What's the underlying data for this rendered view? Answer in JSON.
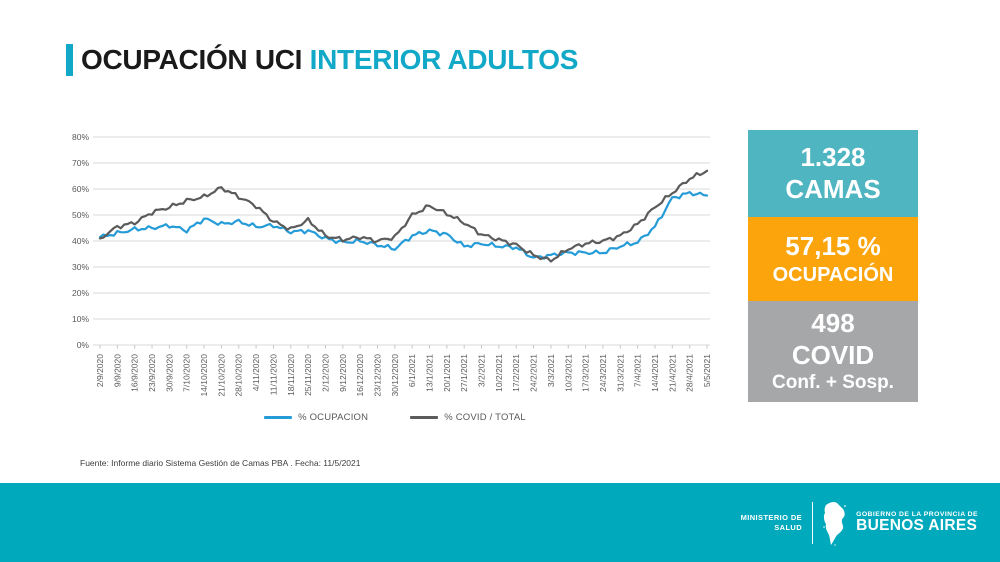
{
  "title": {
    "black": "OCUPACIÓN UCI ",
    "highlight": "INTERIOR ADULTOS",
    "accent_color": "#12a9c8"
  },
  "chart_data": {
    "type": "line",
    "x_labels": [
      "2/9/2020",
      "9/9/2020",
      "16/9/2020",
      "23/9/2020",
      "30/9/2020",
      "7/10/2020",
      "14/10/2020",
      "21/10/2020",
      "28/10/2020",
      "4/11/2020",
      "11/11/2020",
      "18/11/2020",
      "25/11/2020",
      "2/12/2020",
      "9/12/2020",
      "16/12/2020",
      "23/12/2020",
      "30/12/2020",
      "6/1/2021",
      "13/1/2021",
      "20/1/2021",
      "27/1/2021",
      "3/2/2021",
      "10/2/2021",
      "17/2/2021",
      "24/2/2021",
      "3/3/2021",
      "10/3/2021",
      "17/3/2021",
      "24/3/2021",
      "31/3/2021",
      "7/4/2021",
      "14/4/2021",
      "21/4/2021",
      "28/4/2021",
      "5/5/2021"
    ],
    "series": [
      {
        "name": "% OCUPACION",
        "color": "#259cd8",
        "values": [
          41.5,
          43,
          44.5,
          45,
          46,
          44,
          48.5,
          46.5,
          47.5,
          45.5,
          46,
          43.5,
          44,
          41,
          39.5,
          40,
          38.5,
          37,
          42,
          44,
          42.5,
          38,
          39,
          38,
          37.5,
          33.5,
          34.5,
          35.5,
          35.5,
          35.5,
          38,
          39.5,
          45.5,
          56.5,
          58.5,
          57.5
        ]
      },
      {
        "name": "% COVID / TOTAL",
        "color": "#5b5b5b",
        "values": [
          41,
          45.5,
          47,
          51,
          53,
          55.5,
          57,
          60.5,
          57,
          53.5,
          47.5,
          44.5,
          48,
          42,
          40.5,
          41.5,
          40,
          41.5,
          50,
          53.5,
          50.5,
          47,
          42.5,
          40.5,
          38.5,
          34.5,
          32.5,
          37,
          39,
          40,
          42,
          46.5,
          53,
          58.5,
          64,
          67
        ]
      }
    ],
    "ylim": [
      0,
      80
    ],
    "y_ticks": [
      "0%",
      "10%",
      "20%",
      "30%",
      "40%",
      "50%",
      "60%",
      "70%",
      "80%"
    ],
    "grid": true,
    "legend_position": "bottom",
    "title": "",
    "xlabel": "",
    "ylabel": ""
  },
  "stats": [
    {
      "id": "camas",
      "color": "#4fb5c1",
      "lines": [
        "1.328",
        "CAMAS"
      ]
    },
    {
      "id": "ocupacion",
      "color": "#fca40c",
      "lines": [
        "57,15 %",
        "OCUPACIÓN"
      ]
    },
    {
      "id": "covid",
      "color": "#a6a7a8",
      "lines": [
        "498",
        "COVID",
        "Conf. + Sosp."
      ]
    }
  ],
  "source": "Fuente: Informe diario Sistema Gestión de Camas PBA . Fecha: 11/5/2021",
  "footer": {
    "bar_color": "#00a9bc",
    "ministry_line1": "MINISTERIO DE",
    "ministry_line2": "SALUD",
    "government_small": "GOBIERNO DE LA PROVINCIA DE",
    "government_large": "BUENOS AIRES"
  }
}
